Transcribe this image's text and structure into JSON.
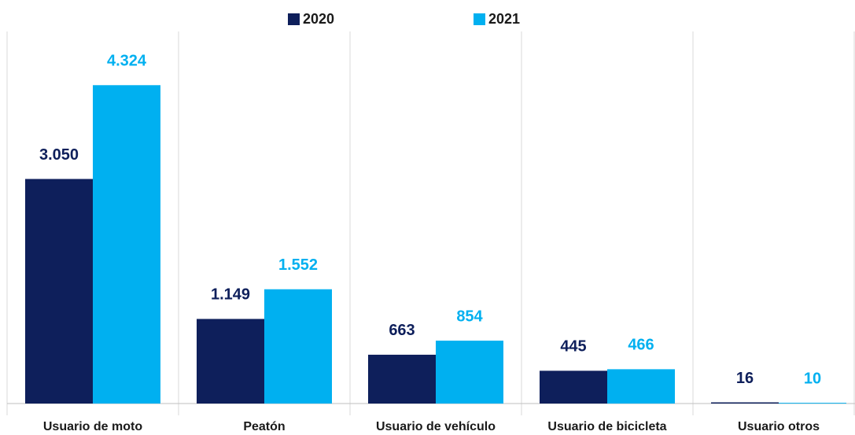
{
  "chart_data": {
    "type": "bar",
    "categories": [
      "Usuario de moto",
      "Peatón",
      "Usuario de vehículo",
      "Usuario de bicicleta",
      "Usuario otros"
    ],
    "series": [
      {
        "name": "2020",
        "color": "#0e1f5b",
        "values": [
          3050,
          1149,
          663,
          445,
          16
        ],
        "value_labels": [
          "3.050",
          "1.149",
          "663",
          "445",
          "16"
        ]
      },
      {
        "name": "2021",
        "color": "#00b0f0",
        "values": [
          4324,
          1552,
          854,
          466,
          10
        ],
        "value_labels": [
          "4.324",
          "1.552",
          "854",
          "466",
          "10"
        ]
      }
    ],
    "ylim": [
      0,
      5000
    ],
    "grid": false,
    "legend": "top"
  }
}
